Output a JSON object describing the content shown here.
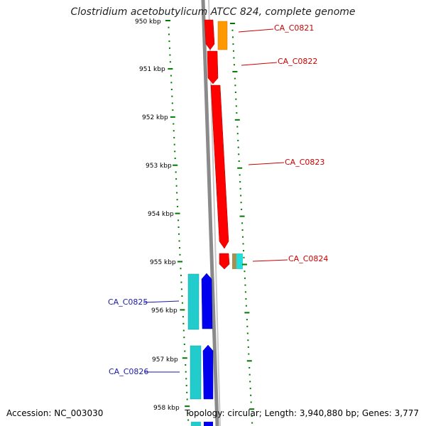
{
  "title": "Clostridium acetobutylicum ATCC 824, complete genome",
  "accession": "Accession: NC_003030",
  "topology": "Topology: circular; Length: 3,940,880 bp; Genes: 3,777",
  "ticks": [
    "950 kbp",
    "951 kbp",
    "952 kbp",
    "953 kbp",
    "954 kbp",
    "955 kbp",
    "956 kbp",
    "957 kbp",
    "958 kbp"
  ],
  "genes_forward": [
    "CA_C0821",
    "CA_C0822",
    "CA_C0823",
    "CA_C0824"
  ],
  "genes_reverse": [
    "CA_C0825",
    "CA_C0826"
  ],
  "colors": {
    "forward_label": "#cc0000",
    "reverse_label": "#1a1aaa",
    "red_gene": "#ff0000",
    "orange_gene": "#ff9900",
    "cyan_gene": "#22cccc",
    "blue_gene": "#0000ee",
    "backbone": "#888888",
    "tick_green": "#007700"
  }
}
